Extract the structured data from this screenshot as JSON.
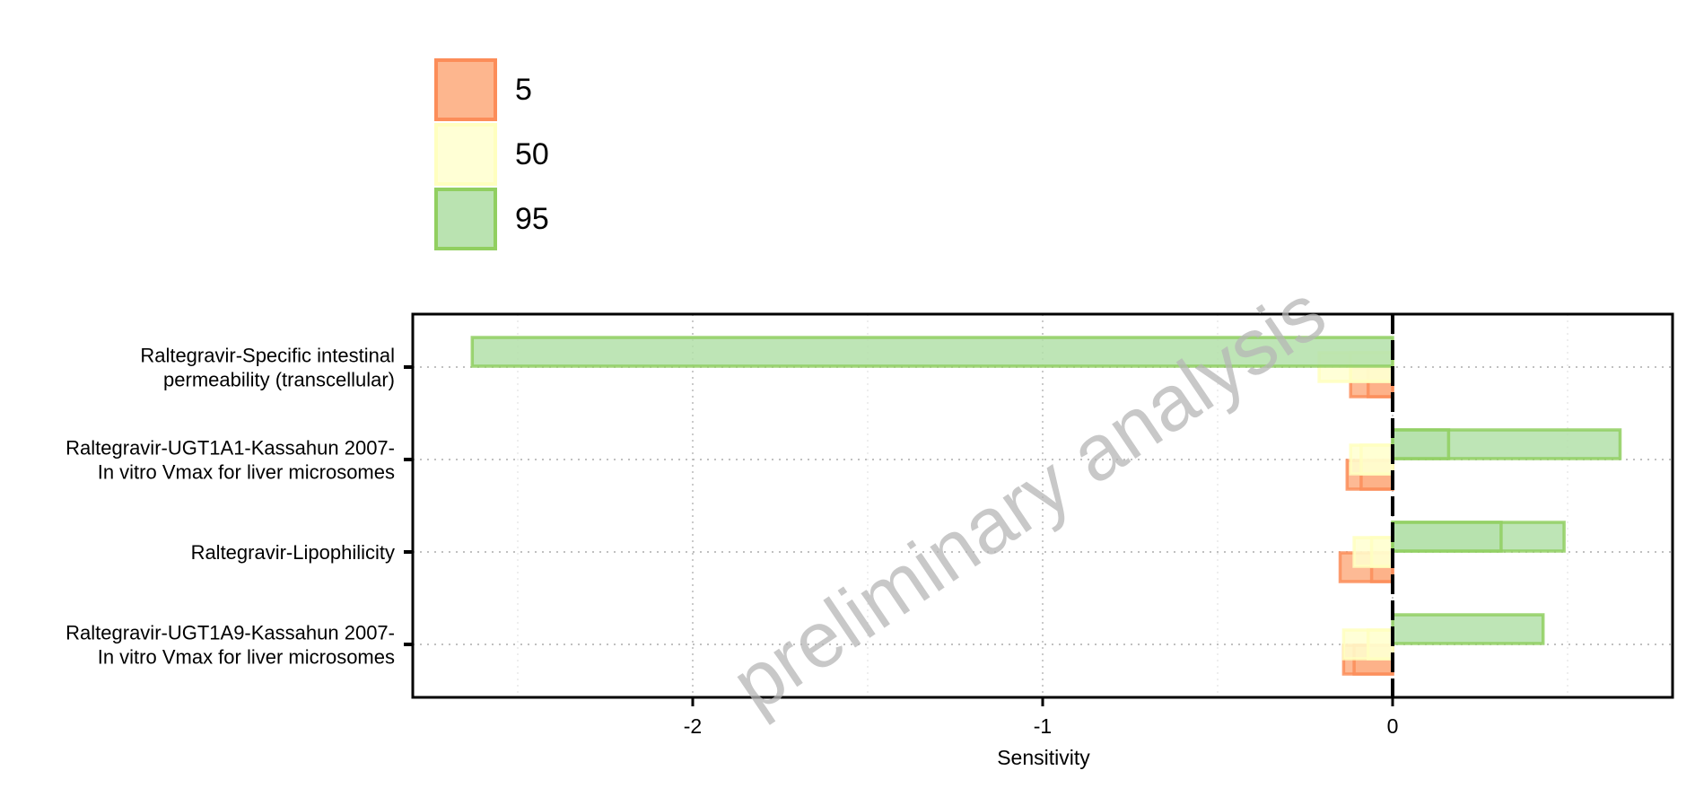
{
  "watermark": "preliminary analysis",
  "chart_data": {
    "type": "bar",
    "orientation": "horizontal",
    "xlabel": "Sensitivity",
    "ylabel": "",
    "xlim": [
      -2.8,
      0.8
    ],
    "xticks": [
      -2,
      -1,
      0
    ],
    "xtick_labels": [
      "-2",
      "-1",
      "0"
    ],
    "reference_line": 0,
    "grid": true,
    "legend_position": "top-left",
    "categories": [
      [
        "Raltegravir-Specific intestinal",
        "permeability (transcellular)"
      ],
      [
        "Raltegravir-UGT1A1-Kassahun 2007-",
        "In vitro Vmax for liver microsomes"
      ],
      [
        "Raltegravir-Lipophilicity"
      ],
      [
        "Raltegravir-UGT1A9-Kassahun 2007-",
        "In vitro Vmax for liver microsomes"
      ]
    ],
    "series": [
      {
        "name": "5",
        "color": "#FC8D59",
        "fill": "#FDAE82",
        "offset": -1,
        "bars": [
          [
            -0.12,
            0
          ],
          [
            -0.13,
            0
          ],
          [
            -0.15,
            0
          ],
          [
            -0.14,
            0
          ]
        ],
        "inner": [
          [
            -0.07,
            0
          ],
          [
            -0.09,
            0
          ],
          [
            -0.06,
            0
          ],
          [
            -0.11,
            0
          ]
        ]
      },
      {
        "name": "50",
        "color": "#FFFFBF",
        "fill": "#FFFFD0",
        "offset": 0,
        "bars": [
          [
            -0.21,
            0
          ],
          [
            -0.12,
            0
          ],
          [
            -0.11,
            0
          ],
          [
            -0.14,
            0
          ]
        ],
        "inner": [
          [
            -0.12,
            0
          ],
          [
            -0.09,
            0
          ],
          [
            -0.06,
            0
          ],
          [
            -0.07,
            0
          ]
        ]
      },
      {
        "name": "95",
        "color": "#91CF60",
        "fill": "#B3E0A9",
        "offset": 1,
        "bars": [
          [
            -2.63,
            0
          ],
          [
            0,
            0.65
          ],
          [
            0,
            0.49
          ],
          [
            0,
            0.43
          ]
        ],
        "inner": [
          [
            0,
            0
          ],
          [
            0,
            0.16
          ],
          [
            0,
            0.31
          ],
          [
            0,
            0
          ]
        ]
      }
    ]
  }
}
